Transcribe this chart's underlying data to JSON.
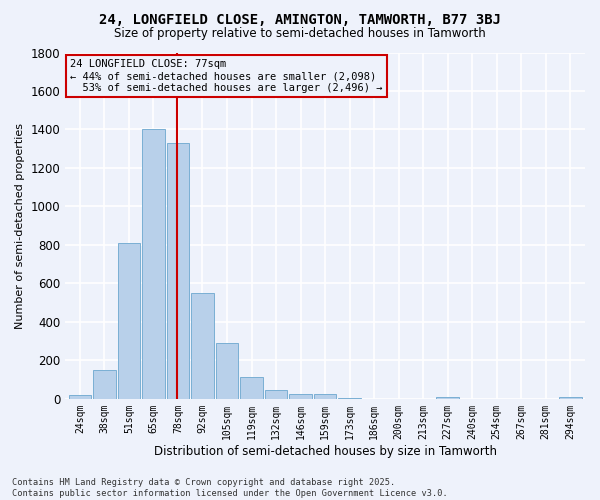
{
  "title": "24, LONGFIELD CLOSE, AMINGTON, TAMWORTH, B77 3BJ",
  "subtitle": "Size of property relative to semi-detached houses in Tamworth",
  "xlabel": "Distribution of semi-detached houses by size in Tamworth",
  "ylabel": "Number of semi-detached properties",
  "bar_color": "#b8d0ea",
  "bar_edge_color": "#7aafd4",
  "categories": [
    "24sqm",
    "38sqm",
    "51sqm",
    "65sqm",
    "78sqm",
    "92sqm",
    "105sqm",
    "119sqm",
    "132sqm",
    "146sqm",
    "159sqm",
    "173sqm",
    "186sqm",
    "200sqm",
    "213sqm",
    "227sqm",
    "240sqm",
    "254sqm",
    "267sqm",
    "281sqm",
    "294sqm"
  ],
  "values": [
    20,
    150,
    810,
    1400,
    1330,
    550,
    290,
    115,
    45,
    25,
    25,
    5,
    0,
    0,
    0,
    10,
    0,
    0,
    0,
    0,
    10
  ],
  "ylim": [
    0,
    1800
  ],
  "yticks": [
    0,
    200,
    400,
    600,
    800,
    1000,
    1200,
    1400,
    1600,
    1800
  ],
  "property_label": "24 LONGFIELD CLOSE: 77sqm",
  "pct_smaller": 44,
  "n_smaller": 2098,
  "pct_larger": 53,
  "n_larger": 2496,
  "annotation_box_color": "#cc0000",
  "vline_index": 4,
  "vline_color": "#cc0000",
  "footnote": "Contains HM Land Registry data © Crown copyright and database right 2025.\nContains public sector information licensed under the Open Government Licence v3.0.",
  "background_color": "#eef2fb",
  "grid_color": "#d8dff0"
}
